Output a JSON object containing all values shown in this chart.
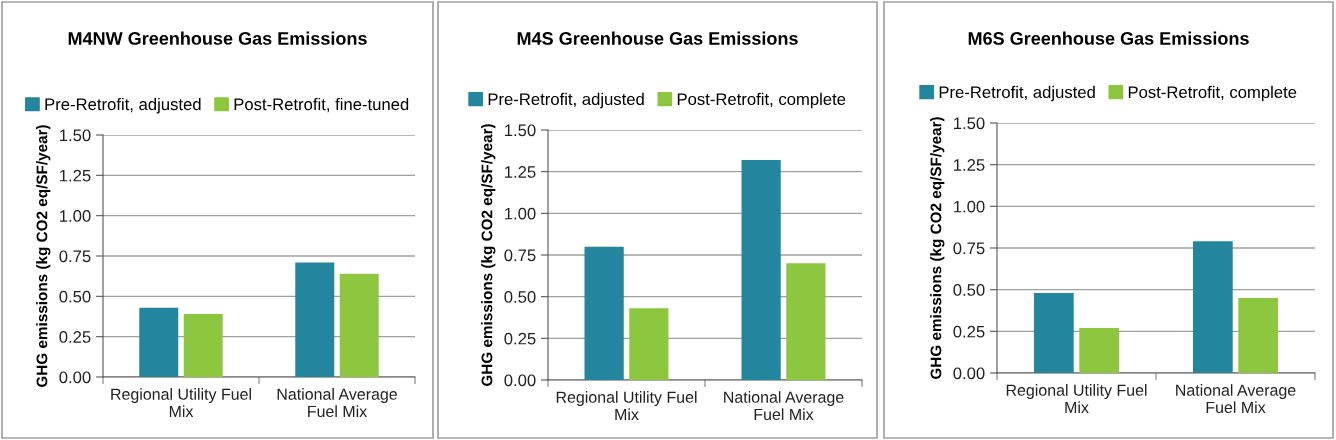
{
  "chart_data": [
    {
      "type": "bar",
      "title": "M4NW Greenhouse Gas Emissions",
      "ylabel": "GHG emissions (kg CO2 eq/SF/year)",
      "categories": [
        "Regional Utility Fuel\nMix",
        "National Average\nFuel Mix"
      ],
      "series": [
        {
          "name": "Pre-Retrofit, adjusted",
          "color": "#23869e",
          "values": [
            0.43,
            0.71
          ]
        },
        {
          "name": "Post-Retrofit, fine-tuned",
          "color": "#8dc63f",
          "values": [
            0.39,
            0.64
          ]
        }
      ],
      "ylim": [
        0,
        1.5
      ],
      "yticks": [
        {
          "value": 0,
          "label": "0.00"
        },
        {
          "value": 0.25,
          "label": "0.25"
        },
        {
          "value": 0.5,
          "label": "0.50"
        },
        {
          "value": 0.75,
          "label": "0.75"
        },
        {
          "value": 1.0,
          "label": "1.00"
        },
        {
          "value": 1.25,
          "label": "1.25"
        },
        {
          "value": 1.5,
          "label": "1.50"
        }
      ],
      "grid": "y",
      "legend": "top"
    },
    {
      "type": "bar",
      "title": "M4S Greenhouse Gas Emissions",
      "ylabel": "GHG emissions (kg CO2 eq/SF/year)",
      "categories": [
        "Regional Utility Fuel\nMix",
        "National Average\nFuel Mix"
      ],
      "series": [
        {
          "name": "Pre-Retrofit, adjusted",
          "color": "#23869e",
          "values": [
            0.8,
            1.32
          ]
        },
        {
          "name": "Post-Retrofit, complete",
          "color": "#8dc63f",
          "values": [
            0.43,
            0.7
          ]
        }
      ],
      "ylim": [
        0,
        1.5
      ],
      "yticks": [
        {
          "value": 0,
          "label": "0.00"
        },
        {
          "value": 0.25,
          "label": "0.25"
        },
        {
          "value": 0.5,
          "label": "0.50"
        },
        {
          "value": 0.75,
          "label": "0.75"
        },
        {
          "value": 1.0,
          "label": "1.00"
        },
        {
          "value": 1.25,
          "label": "1.25"
        },
        {
          "value": 1.5,
          "label": "1.50"
        }
      ],
      "grid": "y",
      "legend": "top"
    },
    {
      "type": "bar",
      "title": "M6S Greenhouse Gas Emissions",
      "ylabel": "GHG emissions (kg CO2 eq/SF/year)",
      "categories": [
        "Regional Utility Fuel\nMix",
        "National Average\nFuel Mix"
      ],
      "series": [
        {
          "name": "Pre-Retrofit, adjusted",
          "color": "#23869e",
          "values": [
            0.48,
            0.79
          ]
        },
        {
          "name": "Post-Retrofit, complete",
          "color": "#8dc63f",
          "values": [
            0.27,
            0.45
          ]
        }
      ],
      "ylim": [
        0,
        1.5
      ],
      "yticks": [
        {
          "value": 0,
          "label": "0.00"
        },
        {
          "value": 0.25,
          "label": "0.25"
        },
        {
          "value": 0.5,
          "label": "0.50"
        },
        {
          "value": 0.75,
          "label": "0.75"
        },
        {
          "value": 1.0,
          "label": "1.00"
        },
        {
          "value": 1.25,
          "label": "1.25"
        },
        {
          "value": 1.5,
          "label": "1.50"
        }
      ],
      "grid": "y",
      "legend": "top"
    }
  ]
}
